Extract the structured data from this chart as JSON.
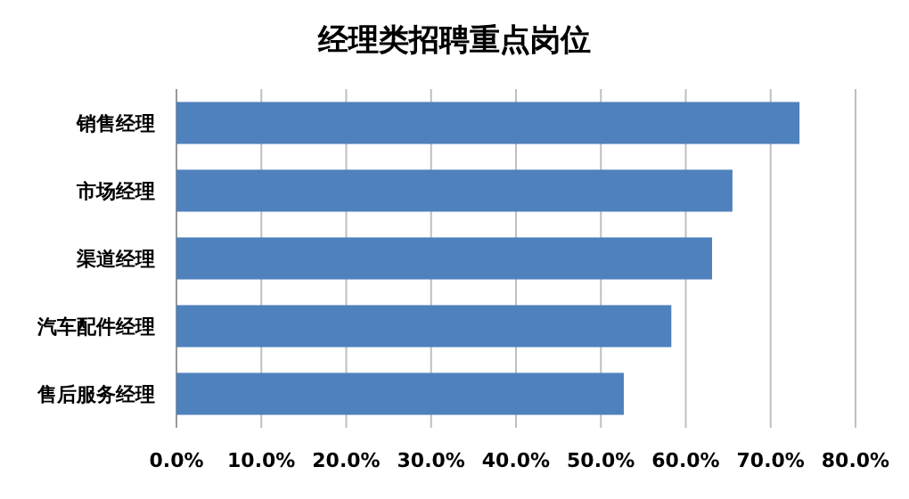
{
  "chart_data": {
    "type": "bar",
    "orientation": "horizontal",
    "title": "经理类招聘重点岗位",
    "categories": [
      "销售经理",
      "市场经理",
      "渠道经理",
      "汽车配件经理",
      "售后服务经理"
    ],
    "values": [
      73.4,
      65.5,
      63.1,
      58.3,
      52.7
    ],
    "color": "#4f81bd",
    "xlim": [
      0,
      80
    ],
    "xticks": [
      {
        "value": 0,
        "label": "0.0%"
      },
      {
        "value": 10,
        "label": "10.0%"
      },
      {
        "value": 20,
        "label": "20.0%"
      },
      {
        "value": 30,
        "label": "30.0%"
      },
      {
        "value": 40,
        "label": "40.0%"
      },
      {
        "value": 50,
        "label": "50.0%"
      },
      {
        "value": 60,
        "label": "60.0%"
      },
      {
        "value": 70,
        "label": "70.0%"
      },
      {
        "value": 80,
        "label": "80.0%"
      }
    ],
    "grid": "x"
  }
}
